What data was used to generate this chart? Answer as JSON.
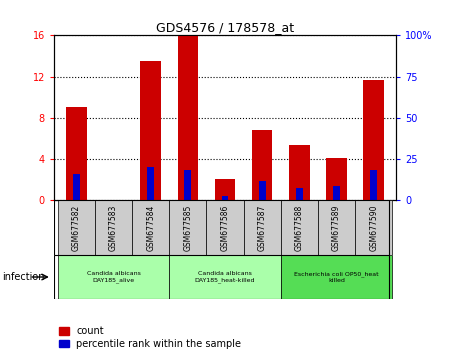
{
  "title": "GDS4576 / 178578_at",
  "samples": [
    "GSM677582",
    "GSM677583",
    "GSM677584",
    "GSM677585",
    "GSM677586",
    "GSM677587",
    "GSM677588",
    "GSM677589",
    "GSM677590"
  ],
  "count_values": [
    9.0,
    0.0,
    13.5,
    15.9,
    2.0,
    6.8,
    5.3,
    4.1,
    11.7
  ],
  "percentile_values": [
    2.5,
    0.0,
    3.2,
    2.9,
    0.4,
    1.8,
    1.2,
    1.4,
    2.9
  ],
  "count_color": "#cc0000",
  "percentile_color": "#0000cc",
  "ylim_left": [
    0,
    16
  ],
  "ylim_right": [
    0,
    100
  ],
  "yticks_left": [
    0,
    4,
    8,
    12,
    16
  ],
  "ytick_labels_left": [
    "0",
    "4",
    "8",
    "12",
    "16"
  ],
  "yticks_right": [
    0,
    25,
    50,
    75,
    100
  ],
  "ytick_labels_right": [
    "0",
    "25",
    "50",
    "75",
    "100%"
  ],
  "groups": [
    {
      "label": "Candida albicans\nDAY185_alive",
      "start": 0,
      "end": 3,
      "color": "#aaffaa"
    },
    {
      "label": "Candida albicans\nDAY185_heat-killed",
      "start": 3,
      "end": 6,
      "color": "#aaffaa"
    },
    {
      "label": "Escherichia coli OP50_heat\nkilled",
      "start": 6,
      "end": 9,
      "color": "#55dd55"
    }
  ],
  "infection_label": "infection",
  "legend_count": "count",
  "legend_percentile": "percentile rank within the sample",
  "bar_width": 0.55,
  "blue_bar_width": 0.18,
  "sample_bg_color": "#cccccc",
  "figsize": [
    4.5,
    3.54
  ],
  "dpi": 100
}
